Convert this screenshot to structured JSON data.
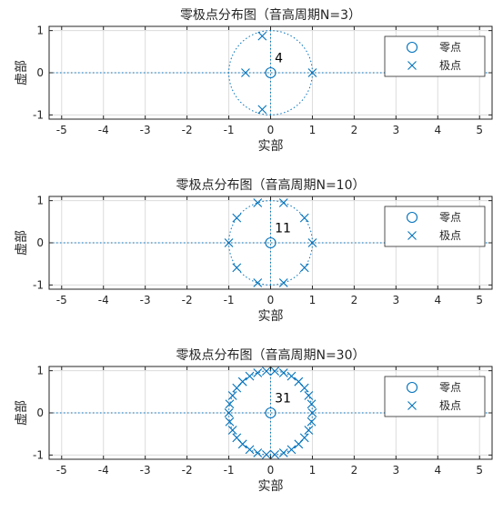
{
  "colors": {
    "marker": "#0072BD",
    "axes": "#262626",
    "grid": "#DCDCDC",
    "unit_circle": "#0072BD",
    "background": "#FFFFFF"
  },
  "chart_data": [
    {
      "type": "scatter",
      "title": "零极点分布图（音高周期N=3）",
      "xlabel": "实部",
      "ylabel": "虚部",
      "xlim": [
        -5.3,
        5.3
      ],
      "ylim": [
        -1.1,
        1.1
      ],
      "xticks": [
        "-5",
        "-4",
        "-3",
        "-2",
        "-1",
        "0",
        "1",
        "2",
        "3",
        "4",
        "5"
      ],
      "yticks": [
        "-1",
        "0",
        "1"
      ],
      "grid": true,
      "legend": {
        "position": "top-right",
        "entries": [
          "零点",
          "极点"
        ]
      },
      "series": [
        {
          "name": "零点",
          "marker": "circle",
          "points": [
            [
              0,
              0
            ]
          ]
        },
        {
          "name": "极点",
          "marker": "x",
          "points": [
            [
              1,
              0
            ],
            [
              -0.6,
              0
            ],
            [
              -0.2,
              0.87
            ],
            [
              -0.2,
              -0.87
            ]
          ]
        }
      ],
      "unit_circle": true,
      "annotation": {
        "text": "4",
        "x": 0.1,
        "y": 0.2
      }
    },
    {
      "type": "scatter",
      "title": "零极点分布图（音高周期N=10）",
      "xlabel": "实部",
      "ylabel": "虚部",
      "xlim": [
        -5.3,
        5.3
      ],
      "ylim": [
        -1.1,
        1.1
      ],
      "xticks": [
        "-5",
        "-4",
        "-3",
        "-2",
        "-1",
        "0",
        "1",
        "2",
        "3",
        "4",
        "5"
      ],
      "yticks": [
        "-1",
        "0",
        "1"
      ],
      "grid": true,
      "legend": {
        "position": "top-right",
        "entries": [
          "零点",
          "极点"
        ]
      },
      "series": [
        {
          "name": "零点",
          "marker": "circle",
          "points": [
            [
              0,
              0
            ]
          ]
        },
        {
          "name": "极点",
          "marker": "x",
          "points": [
            [
              1,
              0
            ],
            [
              0.81,
              0.59
            ],
            [
              0.31,
              0.95
            ],
            [
              -0.31,
              0.95
            ],
            [
              -0.81,
              0.59
            ],
            [
              -1,
              0
            ],
            [
              -0.81,
              -0.59
            ],
            [
              -0.31,
              -0.95
            ],
            [
              0.31,
              -0.95
            ],
            [
              0.81,
              -0.59
            ]
          ]
        }
      ],
      "unit_circle": true,
      "annotation": {
        "text": "11",
        "x": 0.1,
        "y": 0.2
      }
    },
    {
      "type": "scatter",
      "title": "零极点分布图（音高周期N=30）",
      "xlabel": "实部",
      "ylabel": "虚部",
      "xlim": [
        -5.3,
        5.3
      ],
      "ylim": [
        -1.1,
        1.1
      ],
      "xticks": [
        "-5",
        "-4",
        "-3",
        "-2",
        "-1",
        "0",
        "1",
        "2",
        "3",
        "4",
        "5"
      ],
      "yticks": [
        "-1",
        "0",
        "1"
      ],
      "grid": true,
      "legend": {
        "position": "top-right",
        "entries": [
          "零点",
          "极点"
        ]
      },
      "series": [
        {
          "name": "零点",
          "marker": "circle",
          "points": [
            [
              0,
              0
            ]
          ]
        },
        {
          "name": "极点",
          "marker": "x",
          "points": [
            [
              1,
              0
            ],
            [
              0.98,
              0.21
            ],
            [
              0.91,
              0.41
            ],
            [
              0.81,
              0.59
            ],
            [
              0.67,
              0.74
            ],
            [
              0.5,
              0.87
            ],
            [
              0.31,
              0.95
            ],
            [
              0.1,
              0.99
            ],
            [
              -0.1,
              0.99
            ],
            [
              -0.31,
              0.95
            ],
            [
              -0.5,
              0.87
            ],
            [
              -0.67,
              0.74
            ],
            [
              -0.81,
              0.59
            ],
            [
              -0.91,
              0.41
            ],
            [
              -0.98,
              0.21
            ],
            [
              -1,
              0
            ],
            [
              -0.98,
              -0.21
            ],
            [
              -0.91,
              -0.41
            ],
            [
              -0.81,
              -0.59
            ],
            [
              -0.67,
              -0.74
            ],
            [
              -0.5,
              -0.87
            ],
            [
              -0.31,
              -0.95
            ],
            [
              -0.1,
              -0.99
            ],
            [
              0.1,
              -0.99
            ],
            [
              0.31,
              -0.95
            ],
            [
              0.5,
              -0.87
            ],
            [
              0.67,
              -0.74
            ],
            [
              0.81,
              -0.59
            ],
            [
              0.91,
              -0.41
            ],
            [
              0.98,
              -0.21
            ]
          ]
        }
      ],
      "unit_circle": true,
      "annotation": {
        "text": "31",
        "x": 0.1,
        "y": 0.2
      }
    }
  ]
}
